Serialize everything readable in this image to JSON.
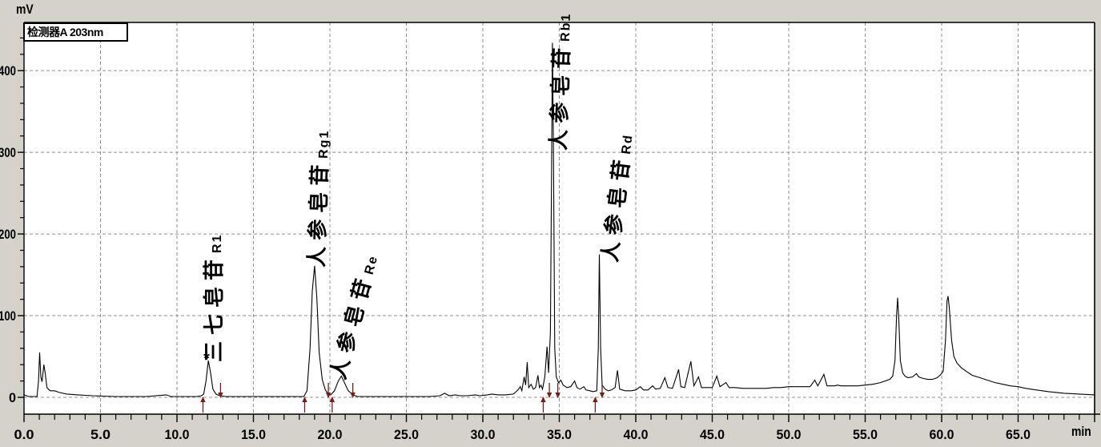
{
  "labels": {
    "detector_title": "检测器A 203nm",
    "y_unit": "mV",
    "x_unit": "min"
  },
  "chart_data": {
    "type": "line",
    "title": "检测器A 203nm",
    "xlabel": "min",
    "ylabel": "mV",
    "xlim": [
      0,
      70
    ],
    "ylim": [
      -20.6,
      459
    ],
    "x_major_ticks": [
      0,
      5,
      10,
      15,
      20,
      25,
      30,
      35,
      40,
      45,
      50,
      55,
      60,
      65,
      70
    ],
    "x_tick_labels": [
      "0.0",
      "5.0",
      "10.0",
      "15.0",
      "20.0",
      "25.0",
      "30.0",
      "35.0",
      "40.0",
      "45.0",
      "50.0",
      "55.0",
      "60.0",
      "65.0"
    ],
    "x_minor_step": 1,
    "y_major_ticks": [
      0,
      100,
      200,
      300,
      400
    ],
    "y_tick_labels": [
      "0",
      "100",
      "200",
      "300",
      "400"
    ],
    "y_minor_step": 20,
    "grid": "dashed at major ticks",
    "colors": {
      "trace": "#000000",
      "grid": "#8f8f8f",
      "integration_marks": "#7a1a1a",
      "plot_bg": "#ffffff",
      "frame_bg": "#d5d2cc"
    },
    "peaks": [
      {
        "name_cjk": "三七皂苷",
        "name_latin": "R1",
        "rt_min": 12.05,
        "height_mV": 45,
        "apex_marker": "*"
      },
      {
        "name_cjk": "人参皂苷",
        "name_latin": "Rg1",
        "rt_min": 19.0,
        "height_mV": 161
      },
      {
        "name_cjk": "人参皂苷",
        "name_latin": "Re",
        "rt_min": 20.75,
        "height_mV": 26
      },
      {
        "name_cjk": "人参皂苷",
        "name_latin": "Rb1",
        "rt_min": 34.55,
        "height_mV": 434
      },
      {
        "name_cjk": "人参皂苷",
        "name_latin": "Rd",
        "rt_min": 37.62,
        "height_mV": 175
      }
    ],
    "integration_marks": [
      {
        "t": 11.7,
        "dir": "up"
      },
      {
        "t": 12.85,
        "dir": "down"
      },
      {
        "t": 18.35,
        "dir": "up"
      },
      {
        "t": 19.9,
        "dir": "down"
      },
      {
        "t": 20.15,
        "dir": "up"
      },
      {
        "t": 21.5,
        "dir": "down"
      },
      {
        "t": 33.95,
        "dir": "up"
      },
      {
        "t": 34.35,
        "dir": "down"
      },
      {
        "t": 34.9,
        "dir": "down"
      },
      {
        "t": 37.35,
        "dir": "up"
      },
      {
        "t": 37.8,
        "dir": "down"
      }
    ],
    "trace": [
      [
        0,
        3
      ],
      [
        0.3,
        1
      ],
      [
        0.85,
        1
      ],
      [
        0.95,
        20
      ],
      [
        1.02,
        55
      ],
      [
        1.1,
        25
      ],
      [
        1.18,
        19
      ],
      [
        1.3,
        40
      ],
      [
        1.38,
        30
      ],
      [
        1.5,
        12
      ],
      [
        1.7,
        8
      ],
      [
        2.0,
        8
      ],
      [
        2.3,
        6
      ],
      [
        2.8,
        4
      ],
      [
        3.5,
        3
      ],
      [
        4.5,
        2
      ],
      [
        6,
        1
      ],
      [
        8,
        1
      ],
      [
        9.3,
        3
      ],
      [
        9.6,
        1
      ],
      [
        10.5,
        1
      ],
      [
        11.3,
        1
      ],
      [
        11.6,
        2
      ],
      [
        11.75,
        4
      ],
      [
        11.9,
        20
      ],
      [
        12.05,
        45
      ],
      [
        12.2,
        30
      ],
      [
        12.35,
        10
      ],
      [
        12.55,
        4
      ],
      [
        12.8,
        2
      ],
      [
        13.2,
        1
      ],
      [
        14,
        1
      ],
      [
        15,
        1
      ],
      [
        16,
        1
      ],
      [
        17,
        1
      ],
      [
        18,
        1
      ],
      [
        18.3,
        1
      ],
      [
        18.5,
        8
      ],
      [
        18.7,
        60
      ],
      [
        18.85,
        130
      ],
      [
        19.0,
        161
      ],
      [
        19.15,
        120
      ],
      [
        19.3,
        55
      ],
      [
        19.5,
        22
      ],
      [
        19.7,
        9
      ],
      [
        19.9,
        4
      ],
      [
        20.05,
        3
      ],
      [
        20.3,
        8
      ],
      [
        20.55,
        20
      ],
      [
        20.75,
        26
      ],
      [
        20.95,
        18
      ],
      [
        21.2,
        8
      ],
      [
        21.5,
        3
      ],
      [
        21.8,
        1
      ],
      [
        22.5,
        1
      ],
      [
        23.5,
        1
      ],
      [
        24.5,
        1
      ],
      [
        25.5,
        1
      ],
      [
        26.5,
        1
      ],
      [
        27.2,
        2
      ],
      [
        27.5,
        5
      ],
      [
        27.8,
        2
      ],
      [
        28.2,
        3
      ],
      [
        28.5,
        2
      ],
      [
        29.0,
        2
      ],
      [
        29.5,
        3
      ],
      [
        29.8,
        2
      ],
      [
        30.3,
        3
      ],
      [
        30.6,
        4
      ],
      [
        31.0,
        3
      ],
      [
        31.5,
        3
      ],
      [
        32.0,
        4
      ],
      [
        32.3,
        9
      ],
      [
        32.45,
        13
      ],
      [
        32.55,
        8
      ],
      [
        32.7,
        25
      ],
      [
        32.8,
        15
      ],
      [
        32.9,
        43
      ],
      [
        33.0,
        12
      ],
      [
        33.15,
        16
      ],
      [
        33.3,
        10
      ],
      [
        33.45,
        12
      ],
      [
        33.6,
        27
      ],
      [
        33.7,
        12
      ],
      [
        33.8,
        15
      ],
      [
        33.9,
        10
      ],
      [
        34.05,
        25
      ],
      [
        34.2,
        62
      ],
      [
        34.3,
        30
      ],
      [
        34.42,
        80
      ],
      [
        34.5,
        300
      ],
      [
        34.55,
        434
      ],
      [
        34.62,
        300
      ],
      [
        34.7,
        60
      ],
      [
        34.8,
        25
      ],
      [
        34.95,
        18
      ],
      [
        35.1,
        21
      ],
      [
        35.25,
        15
      ],
      [
        35.5,
        12
      ],
      [
        35.75,
        13
      ],
      [
        36.0,
        20
      ],
      [
        36.15,
        12
      ],
      [
        36.35,
        10
      ],
      [
        36.6,
        13
      ],
      [
        36.75,
        9
      ],
      [
        37.0,
        8
      ],
      [
        37.2,
        7
      ],
      [
        37.45,
        8
      ],
      [
        37.55,
        60
      ],
      [
        37.62,
        175
      ],
      [
        37.7,
        60
      ],
      [
        37.8,
        15
      ],
      [
        38.0,
        10
      ],
      [
        38.2,
        8
      ],
      [
        38.4,
        9
      ],
      [
        38.65,
        12
      ],
      [
        38.8,
        33
      ],
      [
        38.95,
        10
      ],
      [
        39.3,
        8
      ],
      [
        39.7,
        8
      ],
      [
        40.0,
        9
      ],
      [
        40.3,
        13
      ],
      [
        40.5,
        9
      ],
      [
        40.8,
        9
      ],
      [
        41.1,
        14
      ],
      [
        41.3,
        10
      ],
      [
        41.6,
        11
      ],
      [
        41.9,
        24
      ],
      [
        42.1,
        12
      ],
      [
        42.4,
        11
      ],
      [
        42.8,
        34
      ],
      [
        42.95,
        13
      ],
      [
        43.2,
        12
      ],
      [
        43.6,
        44
      ],
      [
        43.8,
        14
      ],
      [
        44.1,
        25
      ],
      [
        44.3,
        12
      ],
      [
        44.6,
        12
      ],
      [
        45.0,
        12
      ],
      [
        45.3,
        26
      ],
      [
        45.5,
        13
      ],
      [
        45.9,
        18
      ],
      [
        46.1,
        12
      ],
      [
        46.5,
        12
      ],
      [
        47.0,
        11
      ],
      [
        47.5,
        11
      ],
      [
        48.0,
        11
      ],
      [
        48.5,
        11
      ],
      [
        49.0,
        12
      ],
      [
        49.5,
        12
      ],
      [
        50.0,
        13
      ],
      [
        50.5,
        13
      ],
      [
        51.0,
        13
      ],
      [
        51.4,
        13
      ],
      [
        51.7,
        21
      ],
      [
        51.9,
        14
      ],
      [
        52.3,
        28
      ],
      [
        52.5,
        14
      ],
      [
        53.0,
        14
      ],
      [
        53.2,
        15
      ],
      [
        53.4,
        14
      ],
      [
        54.0,
        14
      ],
      [
        54.5,
        14
      ],
      [
        55.0,
        15
      ],
      [
        55.5,
        16
      ],
      [
        56.0,
        18
      ],
      [
        56.3,
        20
      ],
      [
        56.6,
        22
      ],
      [
        56.8,
        26
      ],
      [
        56.95,
        45
      ],
      [
        57.05,
        100
      ],
      [
        57.12,
        122
      ],
      [
        57.2,
        95
      ],
      [
        57.3,
        45
      ],
      [
        57.45,
        30
      ],
      [
        57.6,
        26
      ],
      [
        57.8,
        24
      ],
      [
        58.1,
        25
      ],
      [
        58.35,
        29
      ],
      [
        58.5,
        25
      ],
      [
        58.8,
        23
      ],
      [
        59.1,
        22
      ],
      [
        59.4,
        22
      ],
      [
        59.7,
        24
      ],
      [
        59.95,
        28
      ],
      [
        60.1,
        32
      ],
      [
        60.25,
        70
      ],
      [
        60.35,
        118
      ],
      [
        60.42,
        124
      ],
      [
        60.5,
        110
      ],
      [
        60.65,
        70
      ],
      [
        60.8,
        50
      ],
      [
        61.0,
        42
      ],
      [
        61.3,
        36
      ],
      [
        61.6,
        32
      ],
      [
        62.0,
        27
      ],
      [
        62.5,
        24
      ],
      [
        63.0,
        21
      ],
      [
        63.5,
        18
      ],
      [
        64.0,
        16
      ],
      [
        64.5,
        14
      ],
      [
        65.0,
        13
      ],
      [
        65.5,
        11
      ],
      [
        66.2,
        9
      ],
      [
        67.0,
        7
      ],
      [
        68.0,
        5
      ],
      [
        69.0,
        4
      ],
      [
        70.0,
        3
      ]
    ]
  }
}
